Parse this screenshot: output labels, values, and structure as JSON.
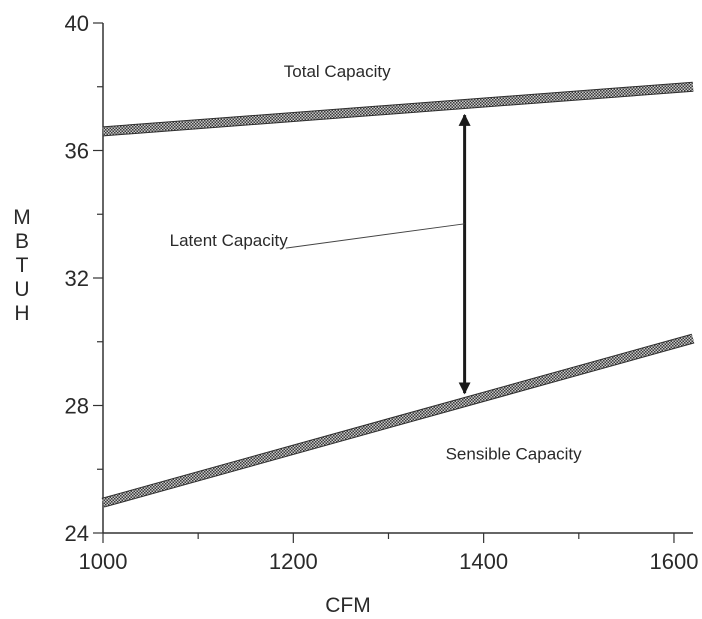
{
  "chart_data": {
    "type": "line",
    "title": "",
    "xlabel": "CFM",
    "ylabel": "MBTUH",
    "ylabel_letters": [
      "M",
      "B",
      "T",
      "U",
      "H"
    ],
    "xlim": [
      1000,
      1620
    ],
    "ylim": [
      24,
      40
    ],
    "x_ticks": [
      1000,
      1200,
      1400,
      1600
    ],
    "x_tick_labels": [
      "1000",
      "1200",
      "1400",
      "1600"
    ],
    "x_minor_step": 100,
    "y_ticks": [
      24,
      28,
      32,
      36,
      40
    ],
    "y_tick_labels": [
      "24",
      "28",
      "32",
      "36",
      "40"
    ],
    "y_minor_step": 2,
    "grid": false,
    "series": [
      {
        "name": "Total Capacity",
        "x": [
          1000,
          1620
        ],
        "y": [
          36.6,
          38.0
        ]
      },
      {
        "name": "Sensible Capacity",
        "x": [
          1000,
          1620
        ],
        "y": [
          24.95,
          30.1
        ]
      }
    ],
    "annotations": [
      {
        "text": "Total Capacity",
        "x": 1190,
        "y": 38.3
      },
      {
        "text": "Sensible Capacity",
        "x": 1360,
        "y": 26.3
      },
      {
        "text": "Latent Capacity",
        "x": 1070,
        "y": 33.0,
        "points_to": {
          "x": 1380,
          "y": 33.7
        }
      }
    ],
    "arrow": {
      "x": 1380,
      "y_from": 28.2,
      "y_to": 37.3,
      "label": "Latent Capacity"
    }
  }
}
